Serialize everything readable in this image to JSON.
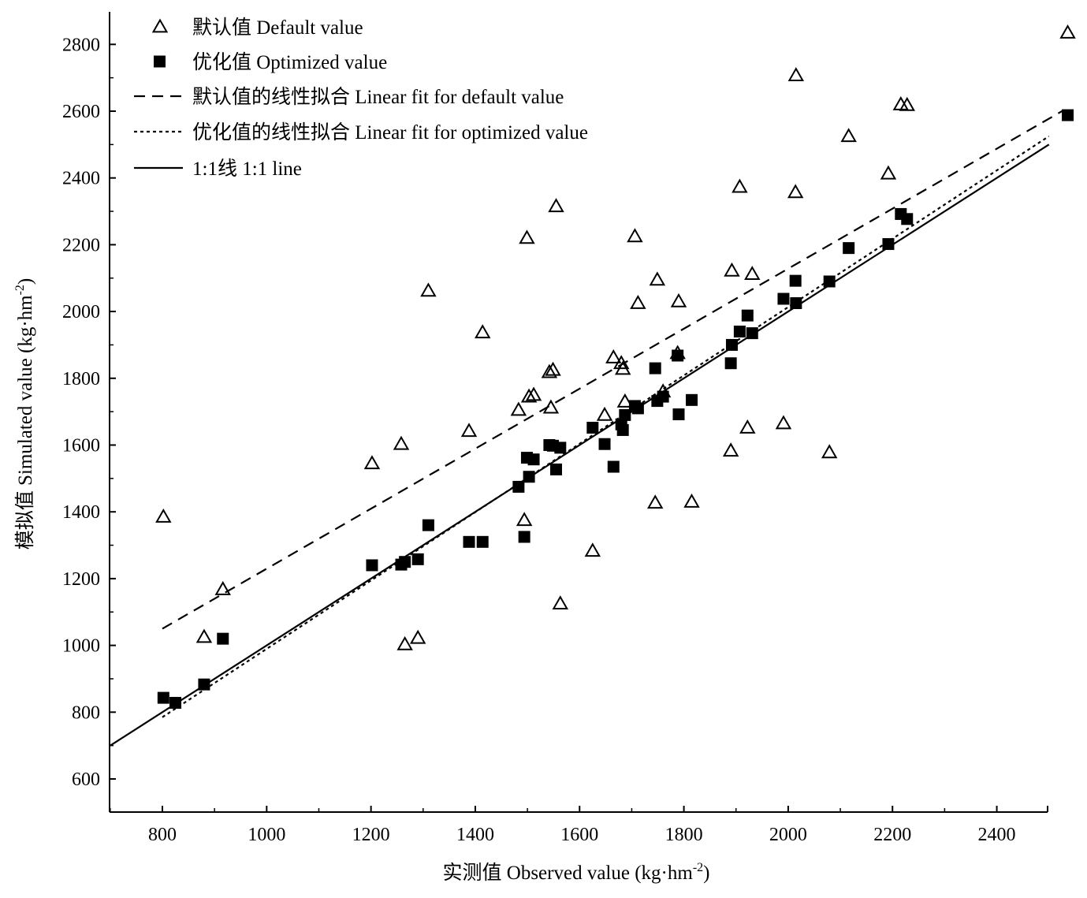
{
  "chart_data": {
    "type": "scatter",
    "xlabel": "实测值 Observed value (kg·hm",
    "xlabel_sup": "-2",
    "xlabel_end": ")",
    "ylabel": "模拟值 Simulated value (kg·hm",
    "ylabel_sup": "-2",
    "ylabel_end": ")",
    "xlim": [
      700,
      2500
    ],
    "ylim": [
      500,
      2900
    ],
    "x_ticks": [
      800,
      1000,
      1200,
      1400,
      1600,
      1800,
      2000,
      2200,
      2400
    ],
    "y_ticks": [
      600,
      800,
      1000,
      1200,
      1400,
      1600,
      1800,
      2000,
      2200,
      2400,
      2600,
      2800
    ],
    "legend_position": "top-left",
    "grid": false,
    "series": [
      {
        "name": "默认值 Default value",
        "marker": "open-triangle",
        "color": "#000000",
        "points": [
          [
            802,
            1385
          ],
          [
            880,
            1025
          ],
          [
            916,
            1168
          ],
          [
            1202,
            1545
          ],
          [
            1258,
            1603
          ],
          [
            1265,
            1003
          ],
          [
            1290,
            1022
          ],
          [
            1310,
            2062
          ],
          [
            1388,
            1642
          ],
          [
            1414,
            1937
          ],
          [
            1483,
            1705
          ],
          [
            1494,
            1375
          ],
          [
            1499,
            2220
          ],
          [
            1503,
            1745
          ],
          [
            1512,
            1750
          ],
          [
            1542,
            1818
          ],
          [
            1545,
            1712
          ],
          [
            1549,
            1825
          ],
          [
            1555,
            2315
          ],
          [
            1563,
            1125
          ],
          [
            1625,
            1283
          ],
          [
            1648,
            1690
          ],
          [
            1665,
            1862
          ],
          [
            1680,
            1845
          ],
          [
            1683,
            1828
          ],
          [
            1687,
            1730
          ],
          [
            1706,
            2225
          ],
          [
            1712,
            2025
          ],
          [
            1745,
            1427
          ],
          [
            1749,
            2095
          ],
          [
            1760,
            1760
          ],
          [
            1788,
            1875
          ],
          [
            1790,
            2030
          ],
          [
            1815,
            1430
          ],
          [
            1890,
            1583
          ],
          [
            1892,
            2122
          ],
          [
            1907,
            2373
          ],
          [
            1922,
            1652
          ],
          [
            1931,
            2112
          ],
          [
            1991,
            1665
          ],
          [
            2014,
            2357
          ],
          [
            2015,
            2707
          ],
          [
            2079,
            1578
          ],
          [
            2116,
            2525
          ],
          [
            2192,
            2413
          ],
          [
            2216,
            2620
          ],
          [
            2228,
            2618
          ],
          [
            2536,
            2835
          ]
        ]
      },
      {
        "name": "优化值 Optimized value",
        "marker": "filled-square",
        "color": "#000000",
        "points": [
          [
            802,
            843
          ],
          [
            825,
            828
          ],
          [
            880,
            883
          ],
          [
            916,
            1020
          ],
          [
            1202,
            1240
          ],
          [
            1258,
            1242
          ],
          [
            1265,
            1250
          ],
          [
            1290,
            1258
          ],
          [
            1310,
            1360
          ],
          [
            1388,
            1310
          ],
          [
            1414,
            1310
          ],
          [
            1483,
            1475
          ],
          [
            1494,
            1325
          ],
          [
            1499,
            1562
          ],
          [
            1503,
            1505
          ],
          [
            1512,
            1557
          ],
          [
            1542,
            1600
          ],
          [
            1549,
            1598
          ],
          [
            1555,
            1527
          ],
          [
            1563,
            1592
          ],
          [
            1625,
            1652
          ],
          [
            1648,
            1603
          ],
          [
            1665,
            1535
          ],
          [
            1680,
            1662
          ],
          [
            1683,
            1645
          ],
          [
            1687,
            1690
          ],
          [
            1706,
            1717
          ],
          [
            1712,
            1710
          ],
          [
            1745,
            1830
          ],
          [
            1749,
            1732
          ],
          [
            1760,
            1745
          ],
          [
            1788,
            1868
          ],
          [
            1790,
            1692
          ],
          [
            1815,
            1735
          ],
          [
            1890,
            1845
          ],
          [
            1892,
            1900
          ],
          [
            1907,
            1940
          ],
          [
            1922,
            1988
          ],
          [
            1931,
            1935
          ],
          [
            1991,
            2038
          ],
          [
            2014,
            2092
          ],
          [
            2015,
            2025
          ],
          [
            2079,
            2090
          ],
          [
            2116,
            2190
          ],
          [
            2192,
            2202
          ],
          [
            2216,
            2292
          ],
          [
            2228,
            2277
          ],
          [
            2536,
            2588
          ]
        ]
      },
      {
        "name": "默认值的线性拟合 Linear fit for default value",
        "marker": "dashed-line",
        "color": "#000000",
        "line": [
          [
            800,
            1050
          ],
          [
            2525,
            2600
          ]
        ]
      },
      {
        "name": "优化值的线性拟合 Linear fit for optimized value",
        "marker": "dotted-line",
        "color": "#000000",
        "line": [
          [
            800,
            785
          ],
          [
            2500,
            2525
          ]
        ]
      },
      {
        "name": "1:1线 1:1 line",
        "marker": "solid-line",
        "color": "#000000",
        "line": [
          [
            700,
            700
          ],
          [
            2500,
            2500
          ]
        ]
      }
    ]
  }
}
